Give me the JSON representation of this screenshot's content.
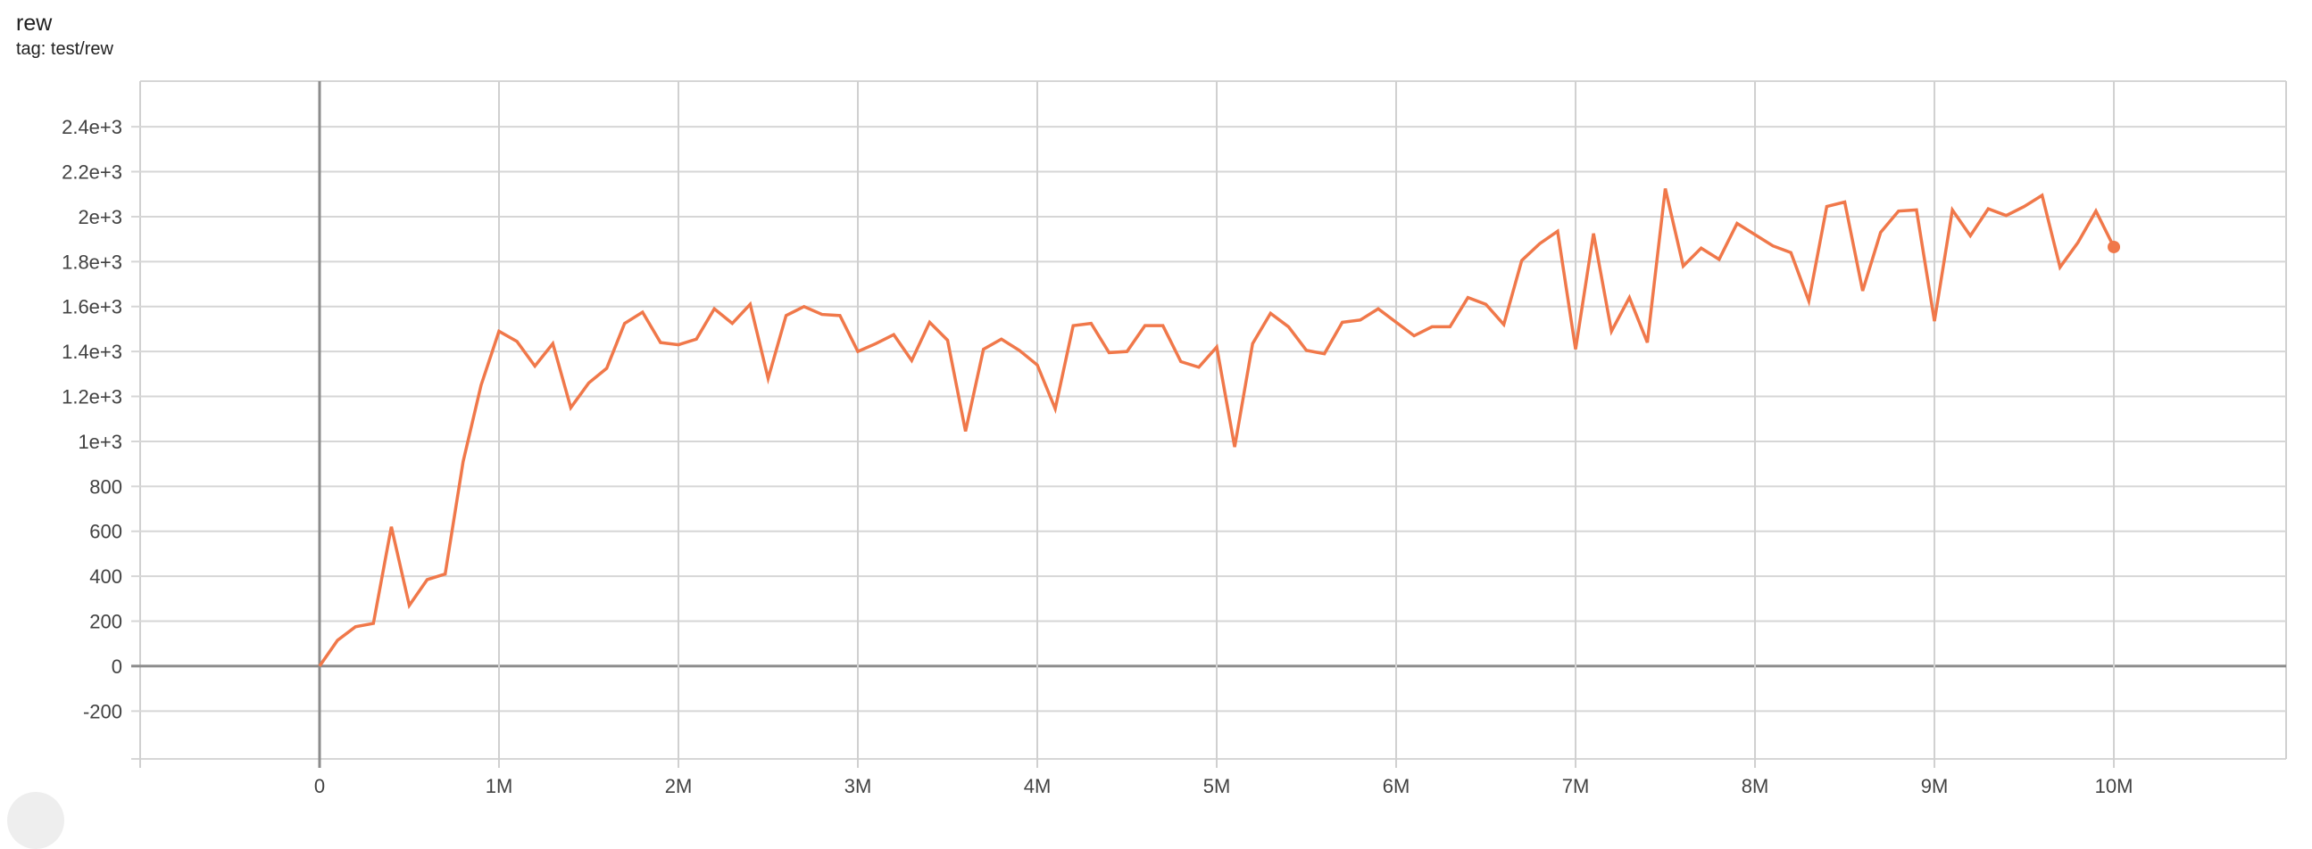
{
  "header": {
    "title": "rew",
    "subtitle": "tag: test/rew"
  },
  "chart_data": {
    "type": "line",
    "title": "rew",
    "subtitle": "tag: test/rew",
    "xlabel": "",
    "ylabel": "",
    "xlim": [
      -1000000,
      10960000
    ],
    "ylim": [
      -413,
      2603
    ],
    "grid": true,
    "color": "#f0784a",
    "x_ticks": [
      {
        "v": 0,
        "label": "0"
      },
      {
        "v": 1000000,
        "label": "1M"
      },
      {
        "v": 2000000,
        "label": "2M"
      },
      {
        "v": 3000000,
        "label": "3M"
      },
      {
        "v": 4000000,
        "label": "4M"
      },
      {
        "v": 5000000,
        "label": "5M"
      },
      {
        "v": 6000000,
        "label": "6M"
      },
      {
        "v": 7000000,
        "label": "7M"
      },
      {
        "v": 8000000,
        "label": "8M"
      },
      {
        "v": 9000000,
        "label": "9M"
      },
      {
        "v": 10000000,
        "label": "10M"
      }
    ],
    "y_ticks": [
      {
        "v": -200,
        "label": "-200"
      },
      {
        "v": 0,
        "label": "0"
      },
      {
        "v": 200,
        "label": "200"
      },
      {
        "v": 400,
        "label": "400"
      },
      {
        "v": 600,
        "label": "600"
      },
      {
        "v": 800,
        "label": "800"
      },
      {
        "v": 1000,
        "label": "1e+3"
      },
      {
        "v": 1200,
        "label": "1.2e+3"
      },
      {
        "v": 1400,
        "label": "1.4e+3"
      },
      {
        "v": 1600,
        "label": "1.6e+3"
      },
      {
        "v": 1800,
        "label": "1.8e+3"
      },
      {
        "v": 2000,
        "label": "2e+3"
      },
      {
        "v": 2200,
        "label": "2.2e+3"
      },
      {
        "v": 2400,
        "label": "2.4e+3"
      }
    ],
    "x_step": 100000,
    "values": [
      0,
      115,
      175,
      190,
      620,
      270,
      385,
      410,
      910,
      1250,
      1490,
      1445,
      1335,
      1435,
      1150,
      1260,
      1325,
      1525,
      1575,
      1440,
      1430,
      1455,
      1590,
      1525,
      1610,
      1280,
      1560,
      1600,
      1565,
      1560,
      1400,
      1435,
      1475,
      1360,
      1530,
      1450,
      1045,
      1410,
      1455,
      1405,
      1340,
      1145,
      1515,
      1525,
      1395,
      1400,
      1515,
      1515,
      1355,
      1330,
      1420,
      975,
      1435,
      1570,
      1510,
      1405,
      1390,
      1530,
      1540,
      1590,
      1530,
      1470,
      1510,
      1510,
      1640,
      1610,
      1520,
      1805,
      1880,
      1935,
      1410,
      1925,
      1490,
      1640,
      1440,
      2125,
      1780,
      1860,
      1810,
      1970,
      1920,
      1870,
      1840,
      1625,
      2045,
      2065,
      1670,
      1930,
      2025,
      2030,
      1535,
      2030,
      1915,
      2035,
      2005,
      2045,
      2095,
      1775,
      1885,
      2025,
      1865
    ]
  }
}
